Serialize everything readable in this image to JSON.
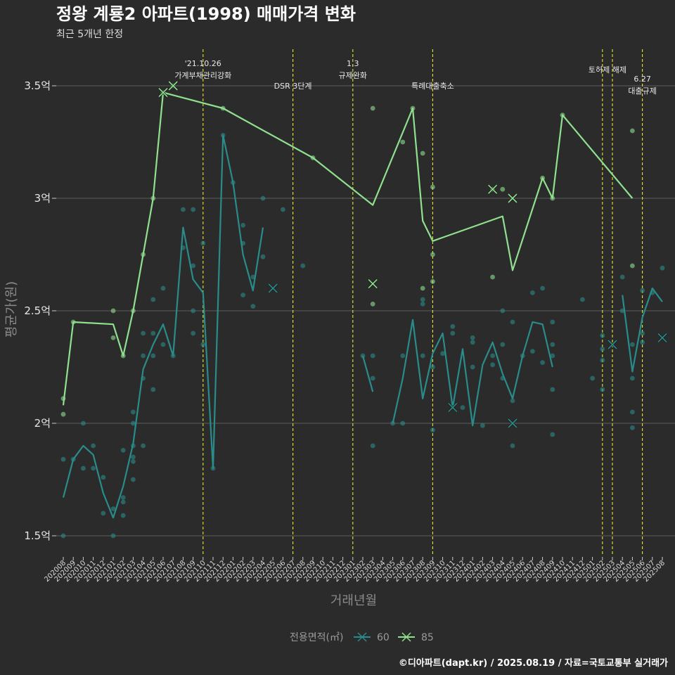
{
  "chart_data": {
    "type": "line",
    "title": "정왕 계룡2 아파트(1998) 매매가격 변화",
    "subtitle": "최근 5개년 한정",
    "xlabel": "거래년월",
    "ylabel": "평균가(원)",
    "caption": "©디아파트(dapt.kr) / 2025.08.19 / 자료=국토교통부 실거래가",
    "legend": {
      "title": "전용면적(㎡)",
      "position": "bottom"
    },
    "ylim": [
      1.4,
      3.65
    ],
    "y_ticks": [
      {
        "value": 1.5,
        "label": "1.5억"
      },
      {
        "value": 2.0,
        "label": "2억"
      },
      {
        "value": 2.5,
        "label": "2.5억"
      },
      {
        "value": 3.0,
        "label": "3억"
      },
      {
        "value": 3.5,
        "label": "3.5억"
      }
    ],
    "categories": [
      "202008",
      "202009",
      "202010",
      "202011",
      "202012",
      "202101",
      "202102",
      "202103",
      "202104",
      "202105",
      "202106",
      "202107",
      "202108",
      "202109",
      "202110",
      "202111",
      "202112",
      "202201",
      "202202",
      "202203",
      "202204",
      "202205",
      "202206",
      "202207",
      "202208",
      "202209",
      "202210",
      "202211",
      "202212",
      "202301",
      "202302",
      "202303",
      "202304",
      "202305",
      "202306",
      "202307",
      "202308",
      "202309",
      "202310",
      "202311",
      "202312",
      "202401",
      "202402",
      "202403",
      "202404",
      "202405",
      "202406",
      "202407",
      "202408",
      "202409",
      "202410",
      "202411",
      "202412",
      "202501",
      "202502",
      "202503",
      "202504",
      "202505",
      "202506",
      "202507",
      "202508"
    ],
    "events": [
      {
        "x": 14.0,
        "lines": [
          "'21.10.26",
          "가계부채관리강화"
        ],
        "row": "top"
      },
      {
        "x": 23.0,
        "lines": [
          "DSR 3단계"
        ],
        "row": "low"
      },
      {
        "x": 29.0,
        "lines": [
          "1.3",
          "규제완화"
        ],
        "row": "top"
      },
      {
        "x": 37.0,
        "lines": [
          "특례대출축소"
        ],
        "row": "low"
      },
      {
        "x": 54.0,
        "lines": [
          "토허제 해제"
        ],
        "row": "mid",
        "label_x": 54.5
      },
      {
        "x": 55.0,
        "lines": [],
        "row": "mid"
      },
      {
        "x": 58.0,
        "lines": [
          "6.27",
          "대출규제"
        ],
        "row": "bottom2"
      }
    ],
    "series": [
      {
        "name": "60",
        "color": "#2a8c8a",
        "line": [
          [
            0,
            1.67
          ],
          [
            1,
            1.84
          ],
          [
            2,
            1.9
          ],
          [
            3,
            1.86
          ],
          [
            4,
            1.69
          ],
          [
            5,
            1.58
          ],
          [
            6,
            1.72
          ],
          [
            7,
            1.91
          ],
          [
            8,
            2.24
          ],
          [
            9,
            2.35
          ],
          [
            10,
            2.44
          ],
          [
            11,
            2.3
          ],
          [
            12,
            2.87
          ],
          [
            13,
            2.64
          ],
          [
            14,
            2.58
          ],
          [
            15,
            1.8
          ],
          [
            16,
            3.28
          ],
          [
            17,
            3.07
          ],
          [
            18,
            2.75
          ],
          [
            19,
            2.59
          ],
          [
            20,
            2.87
          ],
          null,
          [
            30,
            2.3
          ],
          [
            31,
            2.14
          ],
          null,
          [
            33,
            2.0
          ],
          [
            34,
            2.2
          ],
          [
            35,
            2.46
          ],
          [
            36,
            2.11
          ],
          [
            37,
            2.31
          ],
          [
            38,
            2.4
          ],
          [
            39,
            2.07
          ],
          [
            40,
            2.33
          ],
          [
            41,
            1.99
          ],
          [
            42,
            2.26
          ],
          [
            43,
            2.36
          ],
          [
            44,
            2.22
          ],
          [
            45,
            2.11
          ],
          [
            46,
            2.3
          ],
          [
            47,
            2.45
          ],
          [
            48,
            2.44
          ],
          [
            49,
            2.25
          ],
          null,
          [
            56,
            2.57
          ],
          [
            57,
            2.23
          ],
          [
            58,
            2.47
          ],
          [
            59,
            2.6
          ],
          [
            60,
            2.54
          ]
        ],
        "points": [
          [
            0,
            1.84
          ],
          [
            0,
            1.5
          ],
          [
            1,
            1.84
          ],
          [
            2,
            2.0
          ],
          [
            2,
            1.8
          ],
          [
            3,
            1.9
          ],
          [
            3,
            1.8
          ],
          [
            4,
            1.76
          ],
          [
            4,
            1.6
          ],
          [
            5,
            1.62
          ],
          [
            5,
            1.5
          ],
          [
            6,
            1.88
          ],
          [
            6,
            1.67
          ],
          [
            6,
            1.65
          ],
          [
            6,
            1.59
          ],
          [
            7,
            2.05
          ],
          [
            7,
            2.0
          ],
          [
            7,
            1.9
          ],
          [
            7,
            1.85
          ],
          [
            7,
            1.83
          ],
          [
            7,
            1.75
          ],
          [
            8,
            2.4
          ],
          [
            8,
            2.3
          ],
          [
            8,
            2.2
          ],
          [
            8,
            1.9
          ],
          [
            9,
            2.55
          ],
          [
            9,
            2.4
          ],
          [
            9,
            2.3
          ],
          [
            9,
            2.15
          ],
          [
            10,
            2.6
          ],
          [
            10,
            2.35
          ],
          [
            11,
            2.3
          ],
          [
            12,
            2.95
          ],
          [
            12,
            2.78
          ],
          [
            13,
            2.95
          ],
          [
            13,
            2.7
          ],
          [
            13,
            2.5
          ],
          [
            13,
            2.4
          ],
          [
            14,
            2.8
          ],
          [
            14,
            2.35
          ],
          [
            15,
            1.8
          ],
          [
            16,
            3.28
          ],
          [
            17,
            3.07
          ],
          [
            18,
            2.88
          ],
          [
            18,
            2.8
          ],
          [
            18,
            2.57
          ],
          [
            19,
            2.65
          ],
          [
            19,
            2.52
          ],
          [
            20,
            3.0
          ],
          [
            20,
            2.74
          ],
          [
            22,
            2.95
          ],
          [
            24,
            2.7
          ],
          [
            30,
            2.3
          ],
          [
            31,
            2.3
          ],
          [
            31,
            2.2
          ],
          [
            31,
            1.9
          ],
          [
            33,
            2.0
          ],
          [
            34,
            2.3
          ],
          [
            34,
            2.0
          ],
          [
            36,
            2.55
          ],
          [
            36,
            2.53
          ],
          [
            36,
            2.3
          ],
          [
            37,
            2.25
          ],
          [
            37,
            1.97
          ],
          [
            38,
            2.31
          ],
          [
            39,
            2.43
          ],
          [
            39,
            2.4
          ],
          [
            40,
            2.07
          ],
          [
            41,
            2.38
          ],
          [
            41,
            2.36
          ],
          [
            41,
            2.25
          ],
          [
            42,
            1.99
          ],
          [
            43,
            2.3
          ],
          [
            43,
            2.26
          ],
          [
            44,
            2.5
          ],
          [
            44,
            2.35
          ],
          [
            44,
            2.2
          ],
          [
            45,
            2.45
          ],
          [
            45,
            2.1
          ],
          [
            45,
            1.9
          ],
          [
            46,
            2.3
          ],
          [
            47,
            2.58
          ],
          [
            47,
            2.32
          ],
          [
            48,
            2.6
          ],
          [
            48,
            2.27
          ],
          [
            49,
            2.45
          ],
          [
            49,
            2.35
          ],
          [
            49,
            2.3
          ],
          [
            49,
            2.15
          ],
          [
            49,
            1.95
          ],
          [
            52,
            2.55
          ],
          [
            53,
            2.2
          ],
          [
            54,
            2.39
          ],
          [
            54,
            2.33
          ],
          [
            54,
            2.28
          ],
          [
            54,
            2.15
          ],
          [
            56,
            2.65
          ],
          [
            56,
            2.5
          ],
          [
            57,
            2.35
          ],
          [
            57,
            2.2
          ],
          [
            57,
            2.05
          ],
          [
            57,
            1.98
          ],
          [
            58,
            2.59
          ],
          [
            58,
            2.4
          ],
          [
            58,
            2.36
          ],
          [
            59,
            2.58
          ],
          [
            60,
            2.69
          ]
        ],
        "crosses": [
          [
            21,
            2.6
          ],
          [
            39,
            2.07
          ],
          [
            45,
            2.0
          ],
          [
            55,
            2.35
          ],
          [
            60,
            2.38
          ]
        ]
      },
      {
        "name": "85",
        "color": "#8fe08f",
        "line": [
          [
            0,
            2.08
          ],
          [
            1,
            2.45
          ],
          [
            5,
            2.44
          ],
          [
            6,
            2.3
          ],
          [
            7,
            2.5
          ],
          [
            8,
            2.75
          ],
          [
            9,
            3.0
          ],
          [
            10,
            3.47
          ],
          [
            16,
            3.4
          ],
          [
            25,
            3.18
          ],
          [
            31,
            2.97
          ],
          [
            35,
            3.4
          ],
          [
            36,
            2.9
          ],
          [
            37,
            2.81
          ],
          [
            44,
            2.92
          ],
          [
            45,
            2.68
          ],
          [
            48,
            3.09
          ],
          [
            49,
            3.0
          ],
          [
            50,
            3.37
          ],
          [
            57,
            3.0
          ]
        ],
        "points": [
          [
            0,
            2.11
          ],
          [
            0,
            2.04
          ],
          [
            1,
            2.45
          ],
          [
            5,
            2.5
          ],
          [
            5,
            2.38
          ],
          [
            6,
            2.3
          ],
          [
            7,
            2.5
          ],
          [
            8,
            2.75
          ],
          [
            9,
            3.0
          ],
          [
            10,
            3.47
          ],
          [
            11,
            3.5
          ],
          [
            16,
            3.4
          ],
          [
            25,
            3.18
          ],
          [
            31,
            3.4
          ],
          [
            31,
            2.53
          ],
          [
            34,
            3.25
          ],
          [
            35,
            3.4
          ],
          [
            36,
            3.2
          ],
          [
            36,
            2.6
          ],
          [
            37,
            3.05
          ],
          [
            37,
            2.75
          ],
          [
            37,
            2.63
          ],
          [
            43,
            3.04
          ],
          [
            43,
            2.65
          ],
          [
            44,
            3.04
          ],
          [
            48,
            3.09
          ],
          [
            49,
            3.0
          ],
          [
            50,
            3.37
          ],
          [
            57,
            3.3
          ],
          [
            57,
            2.7
          ]
        ],
        "crosses": [
          [
            10,
            3.47
          ],
          [
            11,
            3.5
          ],
          [
            31,
            2.62
          ],
          [
            43,
            3.04
          ],
          [
            45,
            3.0
          ]
        ]
      }
    ]
  }
}
